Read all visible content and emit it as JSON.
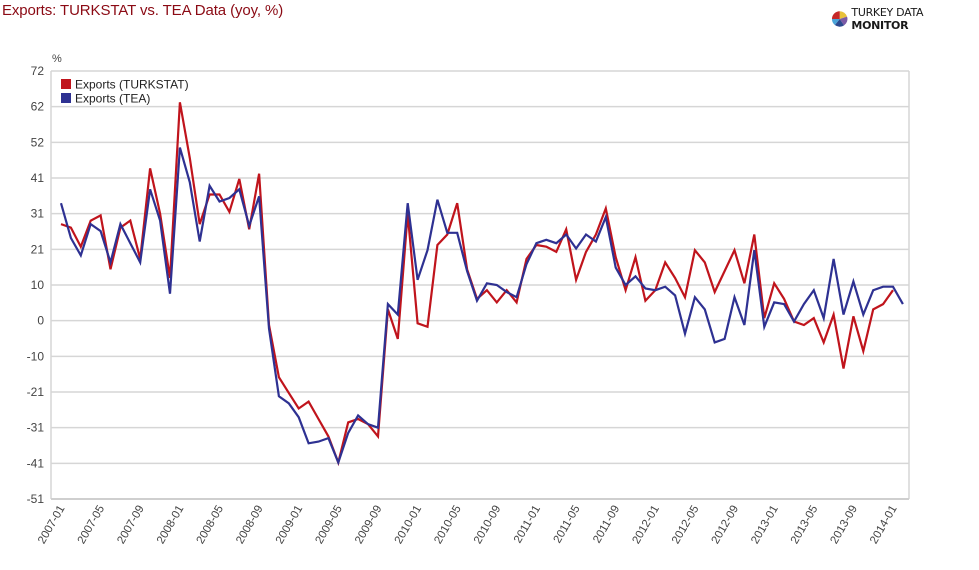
{
  "header": {
    "title": "Exports: TURKSTAT vs. TEA Data (yoy, %)",
    "brand_bold": "TURKEY DATA ",
    "brand_strong": "MONITOR",
    "logo_icon": "pie-chart-logo-icon"
  },
  "colors": {
    "title": "#8b0a14",
    "turkstat": "#c0141c",
    "tea": "#2e3192",
    "grid": "#d6d6d6"
  },
  "chart_data": {
    "type": "line",
    "title": "Exports: TURKSTAT vs. TEA Data (yoy, %)",
    "xlabel": "",
    "ylabel": "%",
    "ylim": [
      -51,
      72
    ],
    "y_ticks": [
      "72",
      "62",
      "52",
      "41",
      "31",
      "21",
      "10",
      "0",
      "-10",
      "-21",
      "-31",
      "-41",
      "-51"
    ],
    "x_tick_labels": [
      "2007-01",
      "2007-05",
      "2007-09",
      "2008-01",
      "2008-05",
      "2008-09",
      "2009-01",
      "2009-05",
      "2009-09",
      "2010-01",
      "2010-05",
      "2010-09",
      "2011-01",
      "2011-05",
      "2011-09",
      "2012-01",
      "2012-05",
      "2012-09",
      "2013-01",
      "2013-05",
      "2013-09",
      "2014-01"
    ],
    "grid": true,
    "legend_position": "top-left inside",
    "x_start": "2007-01",
    "series": [
      {
        "name": "Exports (TURKSTAT)",
        "color": "#c0141c",
        "values": [
          28,
          27,
          21.5,
          29,
          30.5,
          15,
          27,
          29,
          18,
          44,
          31,
          12.5,
          63,
          47,
          28,
          36.5,
          36.5,
          31.5,
          41,
          26.5,
          42.5,
          -1,
          -16,
          -20.5,
          -25,
          -23,
          -28,
          -33,
          -40.5,
          -29,
          -28,
          -29.5,
          -33,
          3.5,
          -5,
          31,
          -0.5,
          -1.5,
          22,
          25,
          34,
          15,
          6.5,
          9,
          5.5,
          9,
          5.5,
          18,
          22,
          21.5,
          20,
          26.5,
          12,
          20,
          25,
          32.5,
          18.5,
          9,
          18.5,
          6,
          9,
          17,
          12.5,
          7,
          20.5,
          17,
          8.5,
          14.5,
          20.5,
          11,
          25,
          1,
          11,
          6.5,
          0,
          -1,
          1,
          -6,
          2,
          -13.5,
          1.5,
          -8.5,
          3.5,
          5,
          9
        ]
      },
      {
        "name": "Exports (TEA)",
        "color": "#2e3192",
        "values": [
          34,
          24,
          19,
          28,
          26,
          17,
          28,
          22.5,
          17,
          38,
          29,
          8,
          50,
          40,
          23,
          39,
          34.5,
          35.5,
          38,
          27.5,
          36,
          -2,
          -21.5,
          -23.5,
          -27.5,
          -35,
          -34.5,
          -33.5,
          -40.5,
          -32,
          -27,
          -29.5,
          -30.5,
          5,
          2,
          34,
          12,
          20.5,
          35,
          25.5,
          25.5,
          14.5,
          6,
          11,
          10.5,
          8.5,
          7,
          16.5,
          22.5,
          23.5,
          22.5,
          25,
          21,
          25,
          23,
          30,
          15.5,
          10.5,
          13,
          9.5,
          9,
          10,
          7.5,
          -3.5,
          7,
          3.5,
          -6,
          -5,
          7,
          -1,
          20.5,
          -1.5,
          5.5,
          5,
          0,
          5,
          9,
          1,
          18,
          2,
          11.5,
          2,
          9,
          10,
          10,
          5
        ]
      }
    ]
  }
}
